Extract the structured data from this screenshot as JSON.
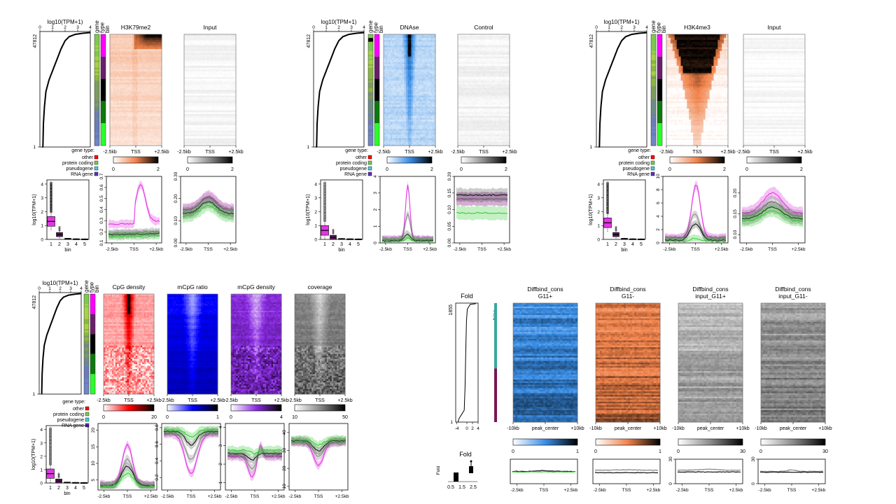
{
  "palettes": {
    "orange": [
      "#ffffff",
      "#f0824a",
      "#000000"
    ],
    "gray": [
      "#ffffff",
      "#8a8a8a",
      "#000000"
    ],
    "blue": [
      "#ffffff",
      "#3a8ee6",
      "#000000"
    ],
    "red": [
      "#ffffff",
      "#ff0000",
      "#000000"
    ],
    "navy": [
      "#ffffff",
      "#0000ff",
      "#000000"
    ],
    "purple": [
      "#ffffff",
      "#8a2be2",
      "#000000"
    ],
    "bins": [
      "#ff00ff",
      "#6b1d6b",
      "#000000",
      "#0a7a0a",
      "#2aff2a"
    ],
    "fold_bins": [
      "#3aa6a0",
      "#7a1650"
    ]
  },
  "gene_type_legend": {
    "title": "gene type:",
    "items": [
      {
        "label": "other",
        "color": "#ff0000"
      },
      {
        "label": "protein coding",
        "color": "#7ec850"
      },
      {
        "label": "pseudogene",
        "color": "#40d0d0"
      },
      {
        "label": "RNA gene",
        "color": "#6030c0"
      }
    ]
  },
  "chart_data": [
    {
      "id": "A",
      "type": "heatmap",
      "rank_max_label": "47812",
      "rank_axis_title": "log10(TPM+1)",
      "rank_ticks": [
        "0",
        "1",
        "2",
        "3",
        "4"
      ],
      "column_labels": [
        "gene",
        "type",
        "bin"
      ],
      "heatmaps": [
        {
          "title": "H3K79me2",
          "palette": "orange",
          "scale_ticks": [
            "0",
            "2"
          ],
          "x_ticks": [
            "-2.5kb",
            "TSS",
            "+2.5kb"
          ]
        },
        {
          "title": "Input",
          "palette": "gray",
          "scale_ticks": [
            "0",
            "2"
          ],
          "x_ticks": [
            "-2.5kb",
            "TSS",
            "+2.5kb"
          ]
        }
      ],
      "boxplot": {
        "ylabel": "log10(TPM+1)",
        "xlabel": "bin",
        "categories": [
          "1",
          "2",
          "3",
          "4",
          "5"
        ],
        "yticks": [
          "0",
          "1",
          "2",
          "3",
          "4"
        ],
        "medians": [
          1.3,
          0.35,
          0.05,
          0.02,
          0.01
        ]
      },
      "profiles": [
        {
          "x_ticks": [
            "-2.5kb",
            "TSS",
            "+2.5kb"
          ],
          "yticks": [
            "0.1",
            "0.2",
            "0.3",
            "0.4",
            "0.5",
            "0.6",
            "0.7"
          ],
          "ylim": [
            0.1,
            0.7
          ]
        },
        {
          "x_ticks": [
            "-2.5kb",
            "TSS",
            "+2.5kb"
          ],
          "yticks": [
            "0.00",
            "0.10",
            "0.20",
            "0.30"
          ],
          "ylim": [
            0.0,
            0.3
          ]
        }
      ]
    },
    {
      "id": "B",
      "type": "heatmap",
      "rank_max_label": "47812",
      "rank_axis_title": "log10(TPM+1)",
      "rank_ticks": [
        "0",
        "1",
        "2",
        "3",
        "4"
      ],
      "column_labels": [
        "gene",
        "type",
        "bin"
      ],
      "heatmaps": [
        {
          "title": "DNAse",
          "palette": "blue",
          "scale_ticks": [
            "0",
            "2"
          ],
          "x_ticks": [
            "-2.5kb",
            "TSS",
            "+2.5kb"
          ]
        },
        {
          "title": "Control",
          "palette": "gray",
          "scale_ticks": [
            "0",
            "2"
          ],
          "x_ticks": [
            "-2.5kb",
            "TSS",
            "+2.5kb"
          ]
        }
      ],
      "boxplot": {
        "ylabel": "log10(TPM+1)",
        "xlabel": "bin",
        "categories": [
          "1",
          "2",
          "3",
          "4",
          "5"
        ],
        "yticks": [
          "0",
          "1",
          "2",
          "3",
          "4"
        ],
        "medians": [
          0.65,
          0.15,
          0.04,
          0.02,
          0.01
        ]
      },
      "profiles": [
        {
          "x_ticks": [
            "-2.5kb",
            "TSS",
            "+2.5kb"
          ],
          "yticks": [
            "0",
            "1",
            "2",
            "3",
            "4"
          ],
          "ylim": [
            0,
            4
          ]
        },
        {
          "x_ticks": [
            "-2.5kb",
            "TSS",
            "+2.5kb"
          ],
          "yticks": [
            "0.00",
            "0.05",
            "0.10",
            "0.15",
            "0.20"
          ],
          "ylim": [
            0.0,
            0.2
          ]
        }
      ]
    },
    {
      "id": "C",
      "type": "heatmap",
      "rank_max_label": "47812",
      "rank_axis_title": "log10(TPM+1)",
      "rank_ticks": [
        "0",
        "1",
        "2",
        "3",
        "4"
      ],
      "column_labels": [
        "gene",
        "type",
        "bin"
      ],
      "heatmaps": [
        {
          "title": "H3K4me3",
          "palette": "orange",
          "scale_ticks": [
            "0",
            "2"
          ],
          "x_ticks": [
            "-2.5kb",
            "TSS",
            "+2.5kb"
          ]
        },
        {
          "title": "Input",
          "palette": "gray",
          "scale_ticks": [
            "0",
            "2"
          ],
          "x_ticks": [
            "-2.5kb",
            "TSS",
            "+2.5kb"
          ]
        }
      ],
      "boxplot": {
        "ylabel": "log10(TPM+1)",
        "xlabel": "bin",
        "categories": [
          "1",
          "2",
          "3",
          "4",
          "5"
        ],
        "yticks": [
          "0",
          "1",
          "2",
          "3",
          "4"
        ],
        "medians": [
          1.2,
          0.35,
          0.05,
          0.02,
          0.01
        ]
      },
      "profiles": [
        {
          "x_ticks": [
            "-2.5kb",
            "TSS",
            "+2.5kb"
          ],
          "yticks": [
            "0",
            "2",
            "4",
            "6",
            "8",
            "10"
          ],
          "ylim": [
            0,
            10
          ]
        },
        {
          "x_ticks": [
            "-2.5kb",
            "TSS",
            "+2.5kb"
          ],
          "yticks": [
            "0.10",
            "0.15",
            "0.20"
          ],
          "ylim": [
            0.08,
            0.24
          ]
        }
      ]
    },
    {
      "id": "D",
      "type": "heatmap",
      "rank_max_label": "47812",
      "rank_axis_title": "log10(TPM+1)",
      "rank_ticks": [
        "0",
        "1",
        "2",
        "3",
        "4"
      ],
      "column_labels": [
        "gene",
        "type",
        "bin"
      ],
      "heatmaps": [
        {
          "title": "CpG density",
          "palette": "red",
          "scale_ticks": [
            "0",
            "20"
          ],
          "x_ticks": [
            "-2.5kb",
            "TSS",
            "+2.5kb"
          ]
        },
        {
          "title": "mCpG ratio",
          "palette": "navy",
          "scale_ticks": [
            "0",
            "1"
          ],
          "x_ticks": [
            "-2.5kb",
            "TSS",
            "+2.5kb"
          ]
        },
        {
          "title": "mCpG density",
          "palette": "purple",
          "scale_ticks": [
            "0",
            "4"
          ],
          "x_ticks": [
            "-2.5kb",
            "TSS",
            "+2.5kb"
          ]
        },
        {
          "title": "coverage",
          "palette": "gray",
          "scale_ticks": [
            "10",
            "50"
          ],
          "x_ticks": [
            "-2.5kb",
            "TSS",
            "+2.5kb"
          ]
        }
      ],
      "boxplot": {
        "ylabel": "log10(TPM+1)",
        "xlabel": "bin",
        "categories": [
          "1",
          "2",
          "3",
          "4",
          "5"
        ],
        "yticks": [
          "0",
          "1",
          "2",
          "3",
          "4"
        ],
        "medians": [
          0.7,
          0.15,
          0.04,
          0.02,
          0.01
        ]
      },
      "profiles": [
        {
          "x_ticks": [
            "-2.5kb",
            "TSS",
            "+2.5kb"
          ],
          "yticks": [
            "5",
            "10",
            "15",
            "20"
          ],
          "ylim": [
            2,
            22
          ]
        },
        {
          "x_ticks": [
            "-2.5kb",
            "TSS",
            "+2.5kb"
          ],
          "yticks": [
            "0.2",
            "0.4",
            "0.6",
            "0.8"
          ],
          "ylim": [
            0.05,
            0.85
          ]
        },
        {
          "x_ticks": [
            "-2.5kb",
            "TSS",
            "+2.5kb"
          ],
          "yticks": [
            "1",
            "2",
            "3",
            "4"
          ],
          "ylim": [
            0.6,
            4.2
          ]
        },
        {
          "x_ticks": [
            "-2.5kb",
            "TSS",
            "+2.5kb"
          ],
          "yticks": [
            "10",
            "20",
            "30",
            "40"
          ],
          "ylim": [
            8,
            45
          ]
        }
      ]
    },
    {
      "id": "E",
      "type": "heatmap",
      "fold_title": "Fold",
      "fold_rank_max_label": "1855",
      "fold_rank_min_label": "1",
      "fold_x_ticks": [
        "-4",
        "0",
        "2",
        "4"
      ],
      "bins_label": "bins",
      "heatmaps": [
        {
          "title": "Diffbind_cons",
          "subtitle": "G11+",
          "palette": "blue",
          "scale_ticks": [
            "0",
            "1"
          ],
          "x_ticks": [
            "-10kb",
            "peak_center",
            "+10kb"
          ]
        },
        {
          "title": "Diffbind_cons",
          "subtitle": "G11-",
          "palette": "orange",
          "scale_ticks": [
            "0",
            "1"
          ],
          "x_ticks": [
            "-10kb",
            "peak_center",
            "+10kb"
          ]
        },
        {
          "title": "Diffbind_cons",
          "subtitle": "input_G11+",
          "palette": "gray",
          "scale_ticks": [
            "0",
            "30"
          ],
          "x_ticks": [
            "-10kb",
            "peak_center",
            "+10kb"
          ]
        },
        {
          "title": "Diffbind_cons",
          "subtitle": "input_G11-",
          "palette": "gray",
          "scale_ticks": [
            "0",
            "30"
          ],
          "x_ticks": [
            "-10kb",
            "peak_center",
            "+10kb"
          ]
        }
      ],
      "fold_box": {
        "title": "Fold",
        "ylabel": "Fold",
        "x_ticks": [
          "0.5",
          "1.5",
          "2.5"
        ]
      },
      "profiles": [
        {
          "x_ticks": [
            "-2.5kb",
            "TSS",
            "+2.5kb"
          ],
          "yticks": []
        },
        {
          "x_ticks": [
            "-2.5kb",
            "TSS",
            "+2.5kb"
          ],
          "yticks": []
        },
        {
          "x_ticks": [
            "-2.5kb",
            "TSS",
            "+2.5kb"
          ],
          "yticks": [
            "0",
            "30"
          ]
        },
        {
          "x_ticks": [
            "-2.5kb",
            "TSS",
            "+2.5kb"
          ],
          "yticks": [
            "0",
            "30"
          ]
        }
      ]
    }
  ]
}
